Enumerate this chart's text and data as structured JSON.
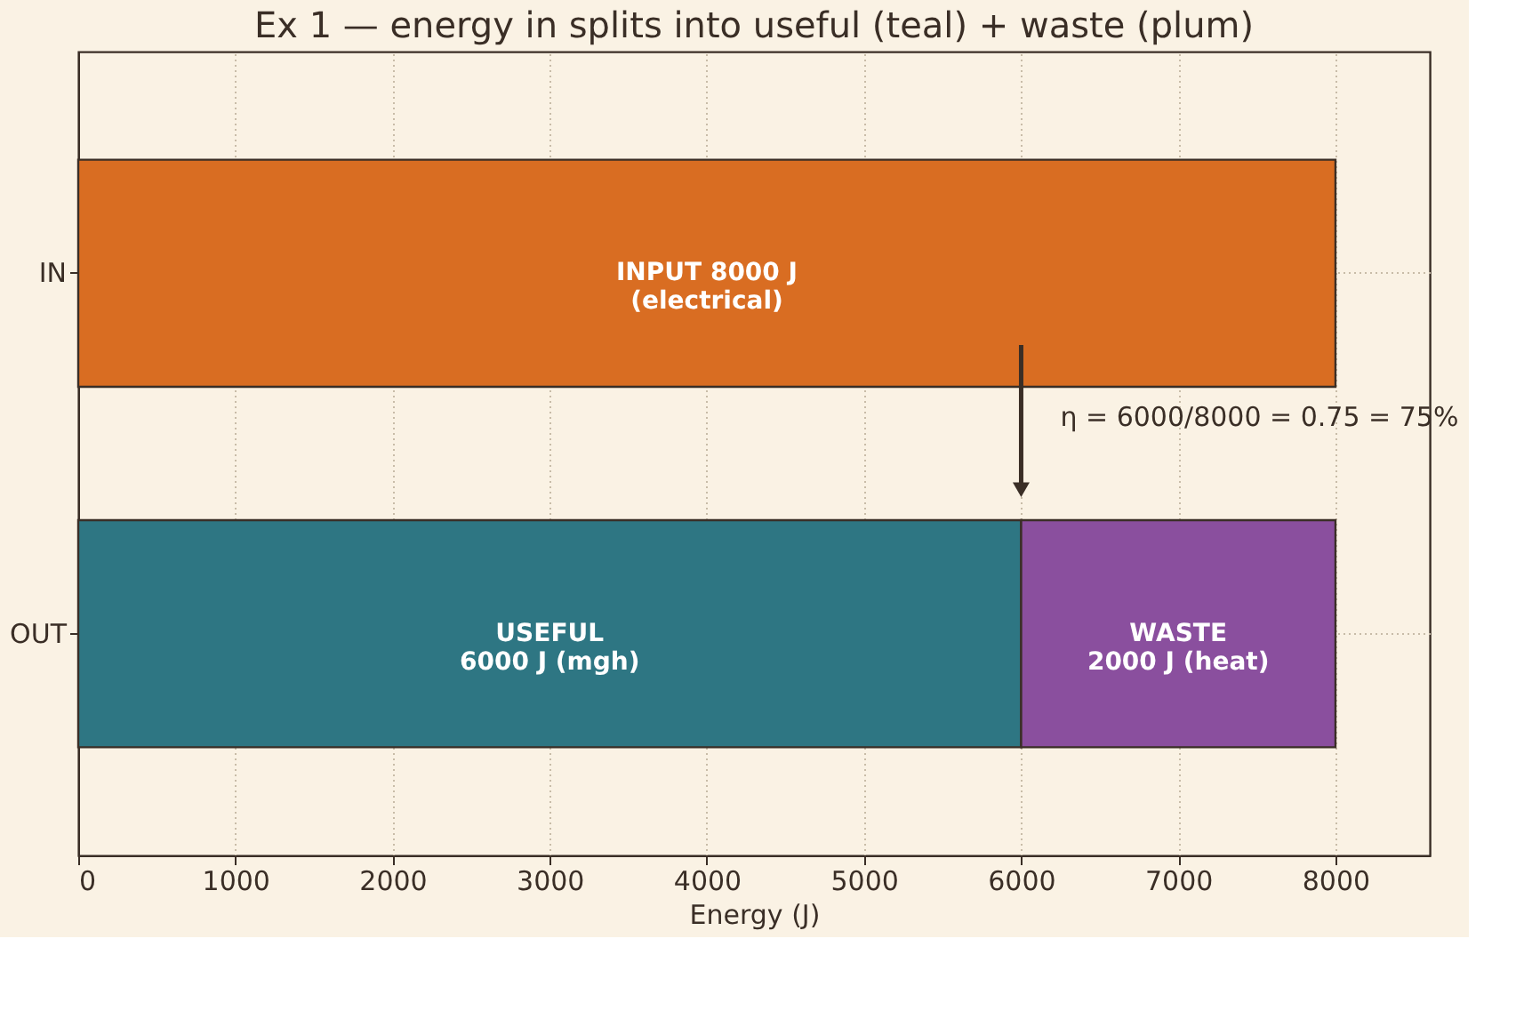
{
  "chart_data": {
    "type": "bar",
    "orientation": "horizontal",
    "stacked": true,
    "title": "Ex 1 — energy in splits into useful (teal) + waste (plum)",
    "xlabel": "Energy (J)",
    "categories": [
      "IN",
      "OUT"
    ],
    "series": [
      {
        "color": "#d96d22",
        "values": [
          8000,
          null
        ],
        "value_labels": [
          "INPUT  8000 J\n(electrical)",
          null
        ]
      },
      {
        "color": "#2e7683",
        "values": [
          null,
          6000
        ],
        "value_labels": [
          null,
          "USEFUL\n6000 J (mgh)"
        ]
      },
      {
        "color": "#8a4f9e",
        "values": [
          null,
          2000
        ],
        "value_labels": [
          null,
          "WASTE\n2000 J (heat)"
        ]
      }
    ],
    "xlim": [
      0,
      8600
    ],
    "xticks": [
      0,
      1000,
      2000,
      3000,
      4000,
      5000,
      6000,
      7000,
      8000
    ],
    "grid": true,
    "annotations": [
      "η = 6000/8000 = 0.75 = 75%"
    ]
  }
}
